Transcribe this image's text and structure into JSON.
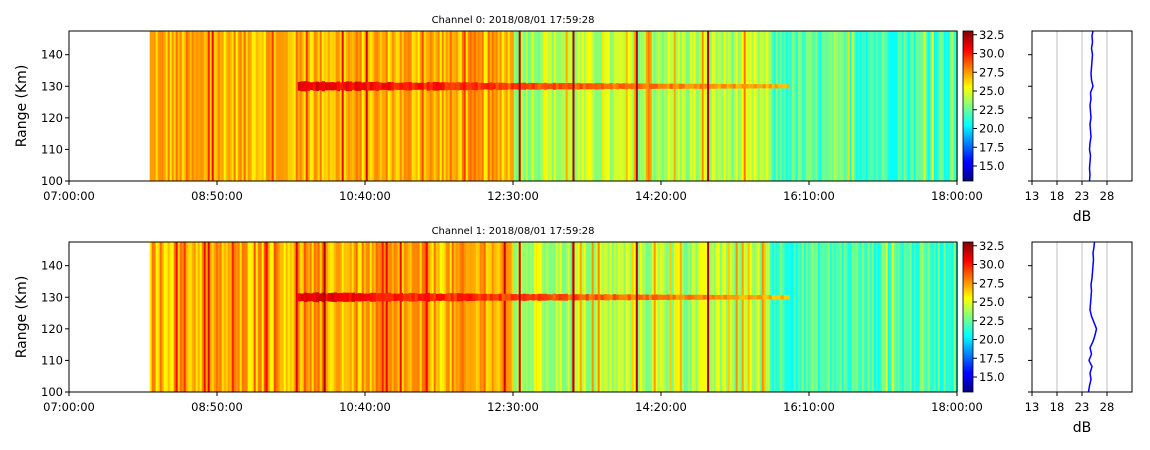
{
  "chart_data": [
    {
      "type": "heatmap",
      "title": "Channel 0: 2018/08/01 17:59:28",
      "ylabel": "Range (Km)",
      "xlabel": "",
      "x_ticks": [
        "07:00:00",
        "08:50:00",
        "10:40:00",
        "12:30:00",
        "14:20:00",
        "16:10:00",
        "18:00:00"
      ],
      "x_range": [
        "07:00:00",
        "18:00:00"
      ],
      "data_start": "08:00:00",
      "y_ticks": [
        100,
        110,
        120,
        130,
        140
      ],
      "ylim": [
        100,
        147.5
      ],
      "echo_layer": {
        "range_km": 130,
        "start": "09:50:00",
        "end": "15:55:00",
        "value_db": 31
      },
      "background_db": {
        "08:00-12:30": 27,
        "12:30-15:40": 24,
        "15:40-18:00": 22
      },
      "strong_lines": [
        "12:35:00",
        "13:15:00",
        "14:02:00",
        "14:55:00"
      ],
      "colorbar": {
        "min": 13,
        "max": 33,
        "ticks": [
          "15.0",
          "17.5",
          "20.0",
          "22.5",
          "25.0",
          "27.5",
          "30.0",
          "32.5"
        ],
        "colormap": "jet"
      },
      "profile": {
        "xlabel": "dB",
        "xlim": [
          13,
          33
        ],
        "x_ticks": [
          13,
          18,
          23,
          28
        ],
        "grid": true,
        "color": "#0000ff",
        "range_km": [
          100,
          102,
          104,
          106,
          108,
          110,
          112,
          114,
          116,
          118,
          120,
          122,
          124,
          126,
          128,
          130,
          132,
          134,
          136,
          138,
          140,
          142,
          144,
          146,
          147.5
        ],
        "values_db": [
          24.5,
          24.6,
          24.5,
          24.6,
          24.7,
          24.5,
          24.6,
          24.8,
          24.7,
          24.6,
          24.8,
          24.7,
          24.6,
          24.8,
          24.7,
          25.2,
          24.9,
          24.8,
          24.9,
          25.0,
          25.1,
          24.9,
          25.1,
          25.0,
          25.2
        ]
      }
    },
    {
      "type": "heatmap",
      "title": "Channel 1: 2018/08/01 17:59:28",
      "ylabel": "Range (Km)",
      "xlabel": "",
      "x_ticks": [
        "07:00:00",
        "08:50:00",
        "10:40:00",
        "12:30:00",
        "14:20:00",
        "16:10:00",
        "18:00:00"
      ],
      "x_range": [
        "07:00:00",
        "18:00:00"
      ],
      "data_start": "08:00:00",
      "y_ticks": [
        100,
        110,
        120,
        130,
        140
      ],
      "ylim": [
        100,
        147.5
      ],
      "echo_layer": {
        "range_km": 130,
        "start": "09:50:00",
        "end": "15:55:00",
        "value_db": 31
      },
      "background_db": {
        "08:00-12:30": 27,
        "12:30-15:40": 24,
        "15:40-18:00": 22
      },
      "strong_lines": [
        "10:10:00",
        "12:35:00",
        "13:15:00",
        "14:02:00",
        "14:55:00"
      ],
      "colorbar": {
        "min": 13,
        "max": 33,
        "ticks": [
          "15.0",
          "17.5",
          "20.0",
          "22.5",
          "25.0",
          "27.5",
          "30.0",
          "32.5"
        ],
        "colormap": "jet"
      },
      "profile": {
        "xlabel": "dB",
        "xlim": [
          13,
          33
        ],
        "x_ticks": [
          13,
          18,
          23,
          28
        ],
        "grid": true,
        "color": "#0000ff",
        "range_km": [
          100,
          102,
          104,
          106,
          108,
          110,
          112,
          114,
          116,
          118,
          120,
          122,
          124,
          126,
          128,
          130,
          132,
          134,
          136,
          138,
          140,
          142,
          144,
          146,
          147.5
        ],
        "values_db": [
          24.3,
          24.5,
          24.8,
          24.6,
          25.0,
          24.4,
          24.9,
          24.6,
          25.2,
          25.6,
          25.9,
          25.4,
          24.9,
          24.6,
          24.7,
          24.8,
          24.9,
          24.8,
          25.0,
          25.1,
          25.2,
          25.3,
          25.2,
          25.4,
          25.5
        ]
      }
    }
  ]
}
